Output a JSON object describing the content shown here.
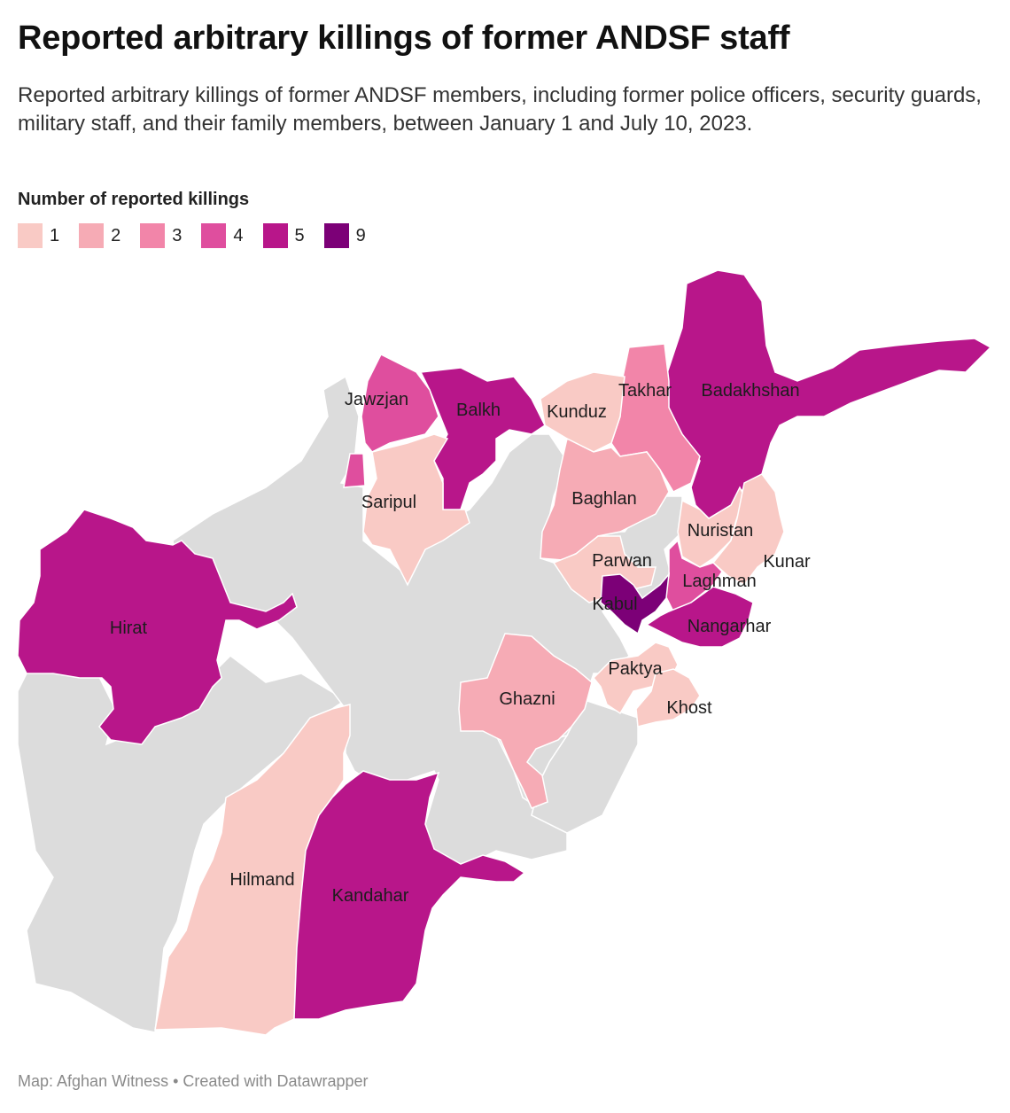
{
  "header": {
    "title": "Reported arbitrary killings of former ANDSF staff",
    "subtitle": "Reported arbitrary killings of former ANDSF members, including former police officers, security guards, military staff, and their family members, between January 1 and July 10, 2023."
  },
  "legend": {
    "title": "Number of reported killings",
    "items": [
      {
        "label": "1",
        "color": "#f9cac5"
      },
      {
        "label": "2",
        "color": "#f6abb5"
      },
      {
        "label": "3",
        "color": "#f285a9"
      },
      {
        "label": "4",
        "color": "#df4e9e"
      },
      {
        "label": "5",
        "color": "#b8168a"
      },
      {
        "label": "9",
        "color": "#7c0077"
      }
    ]
  },
  "colors": {
    "no_data": "#dcdcdc",
    "border": "#ffffff"
  },
  "provinces": [
    {
      "name": "Badakhshan",
      "killings": 5
    },
    {
      "name": "Takhar",
      "killings": 3
    },
    {
      "name": "Kunduz",
      "killings": 1
    },
    {
      "name": "Balkh",
      "killings": 5
    },
    {
      "name": "Jawzjan",
      "killings": 4
    },
    {
      "name": "Saripul",
      "killings": 1
    },
    {
      "name": "Baghlan",
      "killings": 2
    },
    {
      "name": "Parwan",
      "killings": 1
    },
    {
      "name": "Nuristan",
      "killings": 1
    },
    {
      "name": "Kunar",
      "killings": 1
    },
    {
      "name": "Laghman",
      "killings": 4
    },
    {
      "name": "Kabul",
      "killings": 9
    },
    {
      "name": "Nangarhar",
      "killings": 5
    },
    {
      "name": "Paktya",
      "killings": 1
    },
    {
      "name": "Khost",
      "killings": 1
    },
    {
      "name": "Ghazni",
      "killings": 2
    },
    {
      "name": "Hirat",
      "killings": 5
    },
    {
      "name": "Hilmand",
      "killings": 1
    },
    {
      "name": "Kandahar",
      "killings": 5
    }
  ],
  "footer": {
    "credit": "Map: Afghan Witness • Created with Datawrapper"
  }
}
